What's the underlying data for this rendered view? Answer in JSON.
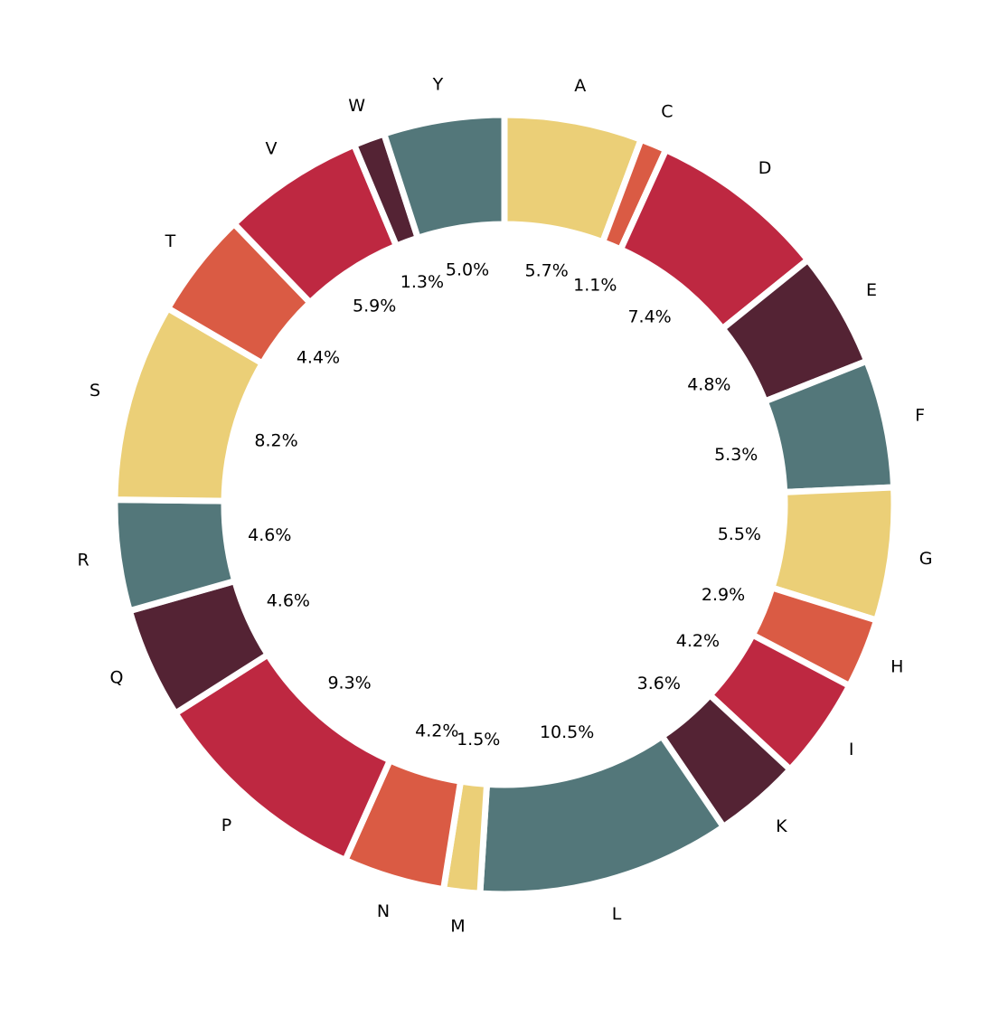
{
  "chart_data": {
    "type": "pie",
    "style": "donut",
    "title": "",
    "start_angle_deg": 90,
    "direction": "clockwise",
    "palette": [
      "#EBCF77",
      "#DA5B44",
      "#BE2841",
      "#542334",
      "#53777A"
    ],
    "slices": [
      {
        "label": "A",
        "value": 5.7,
        "value_label": "5.7%",
        "color": "#EBCF77"
      },
      {
        "label": "C",
        "value": 1.1,
        "value_label": "1.1%",
        "color": "#DA5B44"
      },
      {
        "label": "D",
        "value": 7.4,
        "value_label": "7.4%",
        "color": "#BE2841"
      },
      {
        "label": "E",
        "value": 4.8,
        "value_label": "4.8%",
        "color": "#542334"
      },
      {
        "label": "F",
        "value": 5.3,
        "value_label": "5.3%",
        "color": "#53777A"
      },
      {
        "label": "G",
        "value": 5.5,
        "value_label": "5.5%",
        "color": "#EBCF77"
      },
      {
        "label": "H",
        "value": 2.9,
        "value_label": "2.9%",
        "color": "#DA5B44"
      },
      {
        "label": "I",
        "value": 4.2,
        "value_label": "4.2%",
        "color": "#BE2841"
      },
      {
        "label": "K",
        "value": 3.6,
        "value_label": "3.6%",
        "color": "#542334"
      },
      {
        "label": "L",
        "value": 10.5,
        "value_label": "10.5%",
        "color": "#53777A"
      },
      {
        "label": "M",
        "value": 1.5,
        "value_label": "1.5%",
        "color": "#EBCF77"
      },
      {
        "label": "N",
        "value": 4.2,
        "value_label": "4.2%",
        "color": "#DA5B44"
      },
      {
        "label": "P",
        "value": 9.3,
        "value_label": "9.3%",
        "color": "#BE2841"
      },
      {
        "label": "Q",
        "value": 4.6,
        "value_label": "4.6%",
        "color": "#542334"
      },
      {
        "label": "R",
        "value": 4.6,
        "value_label": "4.6%",
        "color": "#53777A"
      },
      {
        "label": "S",
        "value": 8.2,
        "value_label": "8.2%",
        "color": "#EBCF77"
      },
      {
        "label": "T",
        "value": 4.4,
        "value_label": "4.4%",
        "color": "#DA5B44"
      },
      {
        "label": "V",
        "value": 5.9,
        "value_label": "5.9%",
        "color": "#BE2841"
      },
      {
        "label": "W",
        "value": 1.3,
        "value_label": "1.3%",
        "color": "#542334"
      },
      {
        "label": "Y",
        "value": 5.0,
        "value_label": "5.0%",
        "color": "#53777A"
      }
    ]
  }
}
